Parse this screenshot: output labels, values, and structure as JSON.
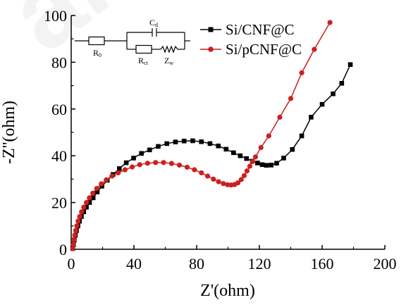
{
  "chart_data": {
    "type": "scatter",
    "xlabel": "Z'(ohm)",
    "ylabel": "-Z''(ohm)",
    "xlim": [
      0,
      200
    ],
    "ylim": [
      0,
      100
    ],
    "xticks": [
      0,
      40,
      80,
      120,
      160,
      200
    ],
    "yticks": [
      0,
      20,
      40,
      60,
      80,
      100
    ],
    "grid": false,
    "legend_position": "top-right",
    "series": [
      {
        "name": "Si/CNF@C",
        "color": "#000000",
        "marker": "square",
        "x": [
          1,
          1.5,
          2,
          2.7,
          3.4,
          4.3,
          5.3,
          6.5,
          8,
          9.7,
          11.7,
          14,
          16.6,
          19.6,
          23,
          26.7,
          30.7,
          35.1,
          39.8,
          44.8,
          50,
          55.5,
          61,
          66.5,
          72,
          77.5,
          83,
          88.5,
          93.8,
          98.8,
          103.5,
          107.8,
          111.8,
          115.5,
          118.8,
          121.8,
          124.5,
          127.5,
          131,
          135.5,
          141,
          147,
          153,
          160,
          167,
          172.5,
          178
        ],
        "y": [
          0.3,
          2,
          4,
          6,
          8,
          10,
          12,
          14,
          16,
          18,
          20,
          22,
          24.5,
          27,
          29.5,
          32,
          34.5,
          37,
          39,
          41,
          42.5,
          44,
          45.2,
          45.9,
          46.3,
          46.4,
          46,
          45.2,
          44.2,
          42.8,
          41.3,
          40,
          38.8,
          37.7,
          36.9,
          36.2,
          35.9,
          36,
          36.8,
          39,
          42.7,
          48.5,
          56.5,
          62,
          66.5,
          71,
          79
        ]
      },
      {
        "name": "Si/pCNF@C",
        "color": "#cc1f1f",
        "marker": "circle",
        "x": [
          1,
          1.4,
          1.8,
          2.3,
          2.9,
          3.6,
          4.4,
          5.4,
          6.6,
          8,
          9.7,
          11.6,
          13.8,
          16.3,
          19.2,
          22.4,
          26,
          30,
          34.3,
          38.9,
          43.7,
          48.7,
          53.8,
          58.9,
          64,
          69,
          73.9,
          78.6,
          83,
          87,
          90.7,
          94,
          97,
          99.7,
          102,
          104.2,
          106.3,
          108.4,
          110.3,
          112.1,
          113.9,
          115.6,
          117.5,
          121,
          126,
          133,
          140,
          147,
          155,
          165
        ],
        "y": [
          0.3,
          2,
          4,
          6,
          8,
          10,
          12,
          14,
          16,
          18,
          20,
          22,
          24,
          26,
          28,
          29.7,
          31.3,
          32.7,
          34,
          35.2,
          36.2,
          36.8,
          37.1,
          37.1,
          36.7,
          36,
          35.1,
          34,
          32.7,
          31.3,
          30,
          28.9,
          28.1,
          27.6,
          27.5,
          27.7,
          28.4,
          29.8,
          31.5,
          33.5,
          35.5,
          37.5,
          39.5,
          43.5,
          48.5,
          56.5,
          64.5,
          75.5,
          85.5,
          97
        ]
      }
    ]
  },
  "inset_circuit": {
    "r0_label": "R",
    "r0_sub": "0",
    "cd_label": "C",
    "cd_sub": "d",
    "rct_label": "R",
    "rct_sub": "ct",
    "zw_label": "Z",
    "zw_sub": "w"
  },
  "watermark_text": "aral"
}
